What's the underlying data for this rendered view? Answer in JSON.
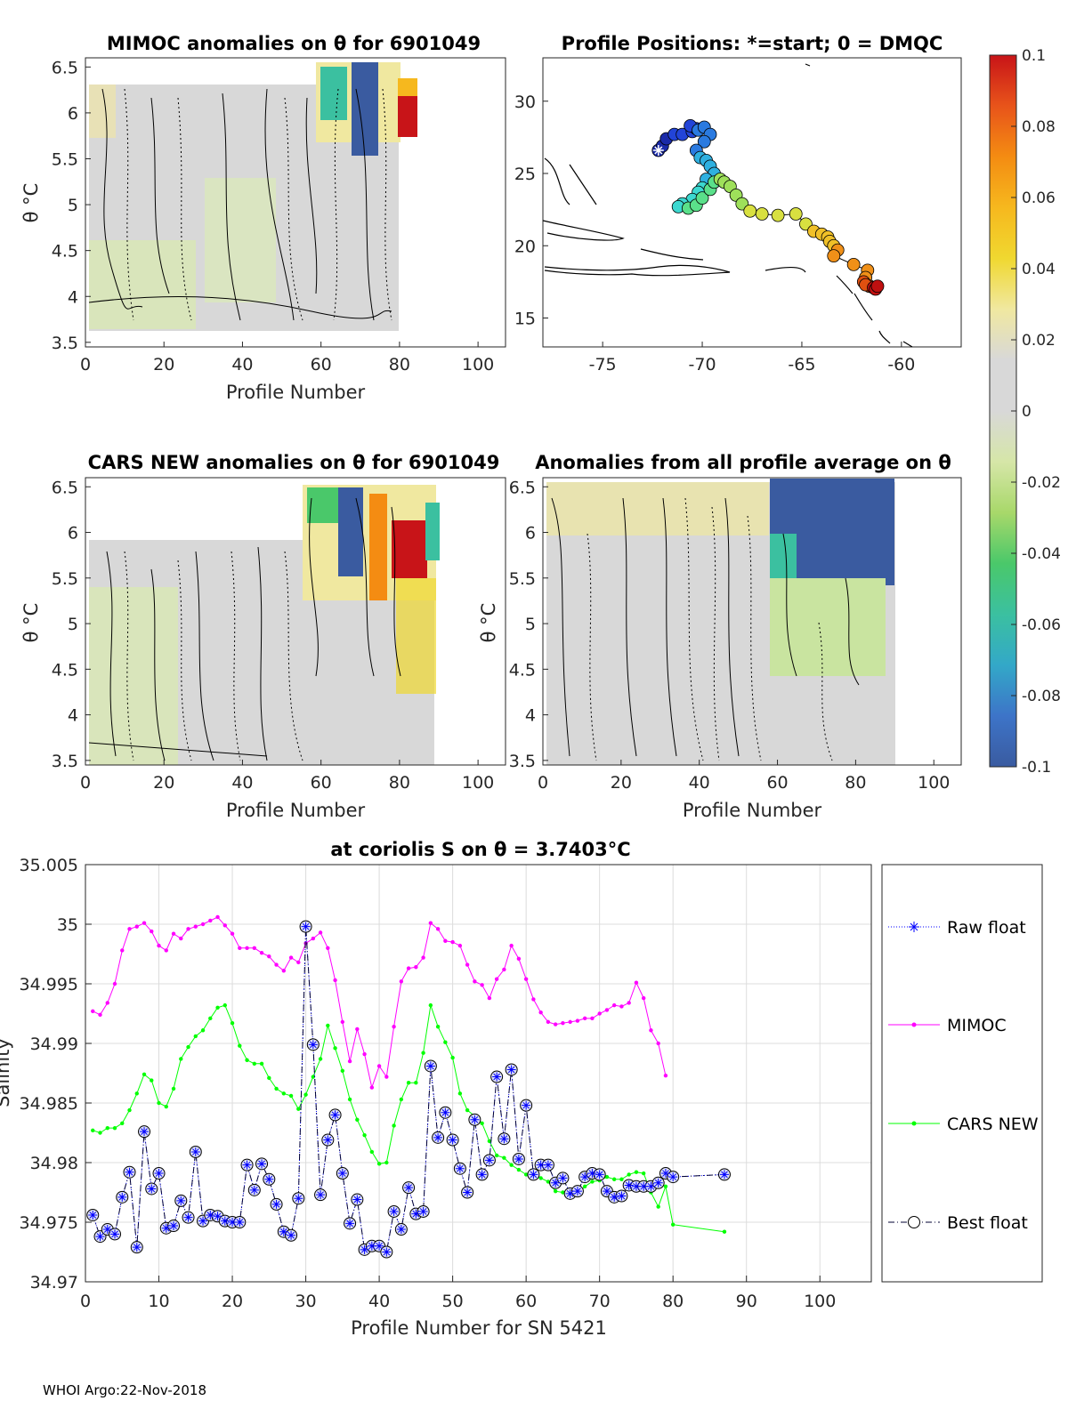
{
  "footer": "WHOI Argo:22-Nov-2018",
  "colorbar": {
    "ticks": [
      "0.1",
      "0.08",
      "0.06",
      "0.04",
      "0.02",
      "0",
      "-0.02",
      "-0.04",
      "-0.06",
      "-0.08",
      "-0.1"
    ],
    "range": [
      -0.1,
      0.1
    ],
    "colors": [
      "#3a5ba0",
      "#3d74c8",
      "#33a8c8",
      "#3bc0a0",
      "#4ac86a",
      "#a8d86a",
      "#d6e6a8",
      "#d8d8d8",
      "#d8d8d8",
      "#f0e8a0",
      "#f0d830",
      "#f6b81e",
      "#f48c12",
      "#e8541a",
      "#c81418"
    ]
  },
  "panels": {
    "mimoc": {
      "title": "MIMOC anomalies on θ  for 6901049",
      "xlabel": "Profile Number",
      "ylabel": "θ °C",
      "xticks": [
        "0",
        "20",
        "40",
        "60",
        "80",
        "100"
      ],
      "yticks": [
        "6.5",
        "6",
        "5.5",
        "5",
        "4.5",
        "4",
        "3.5"
      ]
    },
    "positions": {
      "title": "Profile Positions: *=start; 0 = DMQC",
      "xticks": [
        "-75",
        "-70",
        "-65",
        "-60"
      ],
      "yticks": [
        "30",
        "25",
        "20",
        "15"
      ],
      "track": {
        "lon": [
          -72.2,
          -72.0,
          -71.8,
          -71.4,
          -71.0,
          -70.5,
          -70.3,
          -70.6,
          -70.2,
          -69.9,
          -69.6,
          -69.9,
          -70.3,
          -70.1,
          -69.8,
          -69.6,
          -69.4,
          -69.8,
          -70.0,
          -70.2,
          -70.5,
          -71.0,
          -71.2,
          -70.7,
          -70.3,
          -70.0,
          -69.6,
          -69.4,
          -69.1,
          -68.9,
          -68.6,
          -68.3,
          -68.0,
          -67.6,
          -67.0,
          -66.2,
          -65.3,
          -64.8,
          -64.4,
          -64.0,
          -63.7,
          -63.6,
          -63.4,
          -63.2,
          -63.4,
          -62.4,
          -61.7,
          -61.8,
          -61.9,
          -61.6,
          -61.3,
          -61.6,
          -61.8,
          -61.4,
          -61.3,
          -61.2
        ],
        "lat": [
          26.6,
          26.9,
          27.4,
          27.7,
          27.7,
          27.9,
          28.1,
          28.3,
          28.0,
          28.2,
          27.7,
          27.2,
          26.6,
          26.1,
          25.9,
          25.5,
          25.0,
          24.6,
          24.0,
          23.7,
          23.2,
          22.9,
          22.7,
          22.6,
          22.8,
          23.3,
          23.9,
          24.4,
          24.6,
          24.4,
          24.1,
          23.5,
          22.9,
          22.4,
          22.2,
          22.1,
          22.2,
          21.5,
          21.0,
          20.8,
          20.6,
          20.3,
          20.0,
          19.7,
          19.3,
          18.7,
          18.3,
          17.8,
          17.5,
          17.2,
          17.1,
          17.2,
          17.3,
          17.1,
          17.0,
          17.2
        ]
      }
    },
    "cars": {
      "title": "CARS NEW anomalies on θ for 6901049",
      "xlabel": "Profile Number",
      "ylabel": "θ °C",
      "xticks": [
        "0",
        "20",
        "40",
        "60",
        "80",
        "100"
      ],
      "yticks": [
        "6.5",
        "6",
        "5.5",
        "5",
        "4.5",
        "4",
        "3.5"
      ]
    },
    "allavg": {
      "title": "Anomalies from all profile average on θ",
      "xlabel": "Profile Number",
      "ylabel": "θ °C",
      "xticks": [
        "0",
        "20",
        "40",
        "60",
        "80",
        "100"
      ],
      "yticks": [
        "6.5",
        "6",
        "5.5",
        "5",
        "4.5",
        "4",
        "3.5"
      ]
    }
  },
  "chart_data": {
    "type": "line",
    "title": "at coriolis S on θ = 3.7403°C",
    "xlabel": "Profile Number for SN 5421",
    "ylabel": "Salinity",
    "xlim": [
      0,
      107
    ],
    "ylim": [
      34.97,
      35.005
    ],
    "xticks": [
      "0",
      "10",
      "20",
      "30",
      "40",
      "50",
      "60",
      "70",
      "80",
      "90",
      "100"
    ],
    "yticks": [
      "35.005",
      "35",
      "34.995",
      "34.99",
      "34.985",
      "34.98",
      "34.975",
      "34.97"
    ],
    "legend": [
      "Raw float",
      "MIMOC",
      "CARS NEW",
      "Best float"
    ],
    "series": [
      {
        "name": "MIMOC",
        "color": "#ff00ff",
        "x": [
          1,
          2,
          3,
          4,
          5,
          6,
          7,
          8,
          9,
          10,
          11,
          12,
          13,
          14,
          15,
          16,
          17,
          18,
          19,
          20,
          21,
          22,
          23,
          24,
          25,
          26,
          27,
          28,
          29,
          30,
          31,
          32,
          33,
          34,
          35,
          36,
          37,
          38,
          39,
          40,
          41,
          42,
          43,
          44,
          45,
          46,
          47,
          48,
          49,
          50,
          51,
          52,
          53,
          54,
          55,
          56,
          57,
          58,
          59,
          60,
          61,
          62,
          63,
          64,
          65,
          66,
          67,
          68,
          69,
          70,
          71,
          72,
          73,
          74,
          75,
          76,
          77,
          78,
          79
        ],
        "y": [
          34.9927,
          34.9924,
          34.9934,
          34.995,
          34.9978,
          34.9996,
          34.9998,
          35.0001,
          34.9994,
          34.9982,
          34.9978,
          34.9992,
          34.9988,
          34.9996,
          34.9998,
          35.0,
          35.0003,
          35.0006,
          34.9999,
          34.9992,
          34.998,
          34.998,
          34.998,
          34.9976,
          34.9973,
          34.9966,
          34.9961,
          34.9972,
          34.9968,
          34.9984,
          34.9988,
          34.9993,
          34.998,
          34.9953,
          34.9918,
          34.9885,
          34.9912,
          34.9891,
          34.9863,
          34.9881,
          34.9872,
          34.9914,
          34.9952,
          34.9963,
          34.9964,
          34.9972,
          35.0001,
          34.9996,
          34.9986,
          34.9985,
          34.9982,
          34.9966,
          34.9952,
          34.9949,
          34.9938,
          34.9954,
          34.9962,
          34.9982,
          34.9971,
          34.9954,
          34.9937,
          34.9926,
          34.9918,
          34.9916,
          34.9917,
          34.9918,
          34.9919,
          34.9921,
          34.9921,
          34.9925,
          34.9928,
          34.9932,
          34.9931,
          34.9934,
          34.9951,
          34.9938,
          34.9911,
          34.99,
          34.9873
        ]
      },
      {
        "name": "CARS NEW",
        "color": "#00ff00",
        "x": [
          1,
          2,
          3,
          4,
          5,
          6,
          7,
          8,
          9,
          10,
          11,
          12,
          13,
          14,
          15,
          16,
          17,
          18,
          19,
          20,
          21,
          22,
          23,
          24,
          25,
          26,
          27,
          28,
          29,
          30,
          31,
          32,
          33,
          34,
          35,
          36,
          37,
          38,
          39,
          40,
          41,
          42,
          43,
          44,
          45,
          46,
          47,
          48,
          49,
          50,
          51,
          52,
          53,
          54,
          55,
          56,
          57,
          58,
          59,
          60,
          61,
          62,
          63,
          64,
          65,
          66,
          67,
          68,
          69,
          70,
          71,
          72,
          73,
          74,
          75,
          76,
          77,
          78,
          79,
          80,
          87
        ],
        "y": [
          34.9827,
          34.9825,
          34.9829,
          34.9829,
          34.9833,
          34.9844,
          34.9858,
          34.9874,
          34.9869,
          34.985,
          34.9847,
          34.9862,
          34.9887,
          34.9897,
          34.9906,
          34.9911,
          34.9921,
          34.993,
          34.9932,
          34.9917,
          34.9898,
          34.9886,
          34.9883,
          34.9883,
          34.9871,
          34.9862,
          34.9858,
          34.9856,
          34.9845,
          34.9857,
          34.9872,
          34.9887,
          34.9915,
          34.9896,
          34.9877,
          34.9853,
          34.9836,
          34.9823,
          34.9809,
          34.9799,
          34.98,
          34.9831,
          34.9853,
          34.9867,
          34.9867,
          34.9892,
          34.9932,
          34.9914,
          34.9901,
          34.9888,
          34.9858,
          34.9844,
          34.9839,
          34.9833,
          34.9818,
          34.9806,
          34.9804,
          34.9798,
          34.9794,
          34.979,
          34.9789,
          34.9787,
          34.9784,
          34.9776,
          34.9775,
          34.9775,
          34.9773,
          34.978,
          34.9784,
          34.9785,
          34.9788,
          34.9786,
          34.9786,
          34.979,
          34.9792,
          34.9791,
          34.9775,
          34.9763,
          34.978,
          34.9748,
          34.9742
        ]
      },
      {
        "name": "Raw float",
        "color": "#0000ff",
        "x": [
          1,
          2,
          3,
          4,
          5,
          6,
          7,
          8,
          9,
          10,
          11,
          12,
          13,
          14,
          15,
          16,
          17,
          18,
          19,
          20,
          21,
          22,
          23,
          24,
          25,
          26,
          27,
          28,
          29,
          30,
          31,
          32,
          33,
          34,
          35,
          36,
          37,
          38,
          39,
          40,
          41,
          42,
          43,
          44,
          45,
          46,
          47,
          48,
          49,
          50,
          51,
          52,
          53,
          54,
          55,
          56,
          57,
          58,
          59,
          60,
          61,
          62,
          63,
          64,
          65,
          66,
          67,
          68,
          69,
          70,
          71,
          72,
          73,
          74,
          75,
          76,
          77,
          78,
          79,
          80,
          87
        ],
        "y": [
          34.9756,
          34.9738,
          34.9744,
          34.974,
          34.9771,
          34.9792,
          34.9729,
          34.9826,
          34.9778,
          34.9791,
          34.9745,
          34.9747,
          34.9768,
          34.9754,
          34.9809,
          34.9751,
          34.9756,
          34.9755,
          34.9751,
          34.975,
          34.975,
          34.9798,
          34.9777,
          34.9799,
          34.9786,
          34.9765,
          34.9742,
          34.9739,
          34.977,
          34.9998,
          34.9899,
          34.9773,
          34.9819,
          34.984,
          34.9791,
          34.9749,
          34.9769,
          34.9727,
          34.973,
          34.973,
          34.9725,
          34.9759,
          34.9744,
          34.9779,
          34.9757,
          34.9759,
          34.9881,
          34.9821,
          34.9842,
          34.9819,
          34.9795,
          34.9775,
          34.9836,
          34.979,
          34.9802,
          34.9872,
          34.982,
          34.9878,
          34.9803,
          34.9848,
          34.979,
          34.9798,
          34.9798,
          34.9783,
          34.9787,
          34.9774,
          34.9776,
          34.9788,
          34.9791,
          34.979,
          34.9776,
          34.9771,
          34.9772,
          34.9781,
          34.978,
          34.978,
          34.978,
          34.9783,
          34.9791,
          34.9788,
          34.979
        ]
      },
      {
        "name": "Best float",
        "color": "#000033",
        "x": [
          1,
          2,
          3,
          4,
          5,
          6,
          7,
          8,
          9,
          10,
          11,
          12,
          13,
          14,
          15,
          16,
          17,
          18,
          19,
          20,
          21,
          22,
          23,
          24,
          25,
          26,
          27,
          28,
          29,
          30,
          31,
          32,
          33,
          34,
          35,
          36,
          37,
          38,
          39,
          40,
          41,
          42,
          43,
          44,
          45,
          46,
          47,
          48,
          49,
          50,
          51,
          52,
          53,
          54,
          55,
          56,
          57,
          58,
          59,
          60,
          61,
          62,
          63,
          64,
          65,
          66,
          67,
          68,
          69,
          70,
          71,
          72,
          73,
          74,
          75,
          76,
          77,
          78,
          79,
          80,
          87
        ],
        "y": [
          34.9756,
          34.9738,
          34.9744,
          34.974,
          34.9771,
          34.9792,
          34.9729,
          34.9826,
          34.9778,
          34.9791,
          34.9745,
          34.9747,
          34.9768,
          34.9754,
          34.9809,
          34.9751,
          34.9756,
          34.9755,
          34.9751,
          34.975,
          34.975,
          34.9798,
          34.9777,
          34.9799,
          34.9786,
          34.9765,
          34.9742,
          34.9739,
          34.977,
          34.9998,
          34.9899,
          34.9773,
          34.9819,
          34.984,
          34.9791,
          34.9749,
          34.9769,
          34.9727,
          34.973,
          34.973,
          34.9725,
          34.9759,
          34.9744,
          34.9779,
          34.9757,
          34.9759,
          34.9881,
          34.9821,
          34.9842,
          34.9819,
          34.9795,
          34.9775,
          34.9836,
          34.979,
          34.9802,
          34.9872,
          34.982,
          34.9878,
          34.9803,
          34.9848,
          34.979,
          34.9798,
          34.9798,
          34.9783,
          34.9787,
          34.9774,
          34.9776,
          34.9788,
          34.9791,
          34.979,
          34.9776,
          34.9771,
          34.9772,
          34.9781,
          34.978,
          34.978,
          34.978,
          34.9783,
          34.9791,
          34.9788,
          34.979
        ]
      }
    ]
  }
}
